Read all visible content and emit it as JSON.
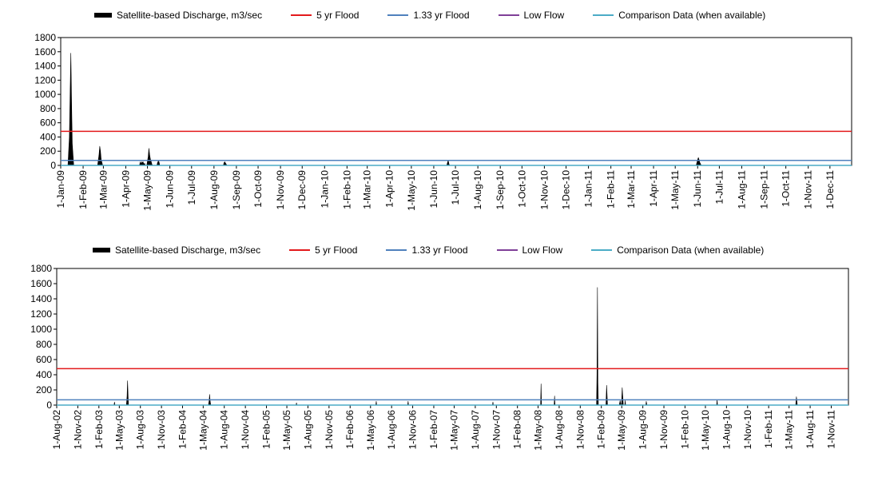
{
  "chart_data": [
    {
      "type": "area",
      "title": "",
      "xlabel": "",
      "ylabel": "",
      "ylim": [
        0,
        1800
      ],
      "yticks": [
        0,
        200,
        400,
        600,
        800,
        1000,
        1200,
        1400,
        1600,
        1800
      ],
      "xrange": [
        "2009-01-01",
        "2011-12-31"
      ],
      "xtick_labels": [
        "1-Jan-09",
        "1-Feb-09",
        "1-Mar-09",
        "1-Apr-09",
        "1-May-09",
        "1-Jun-09",
        "1-Jul-09",
        "1-Aug-09",
        "1-Sep-09",
        "1-Oct-09",
        "1-Nov-09",
        "1-Dec-09",
        "1-Jan-10",
        "1-Feb-10",
        "1-Mar-10",
        "1-Apr-10",
        "1-May-10",
        "1-Jun-10",
        "1-Jul-10",
        "1-Aug-10",
        "1-Sep-10",
        "1-Oct-10",
        "1-Nov-10",
        "1-Dec-10",
        "1-Jan-11",
        "1-Feb-11",
        "1-Mar-11",
        "1-Apr-11",
        "1-May-11",
        "1-Jun-11",
        "1-Jul-11",
        "1-Aug-11",
        "1-Sep-11",
        "1-Oct-11",
        "1-Nov-11",
        "1-Dec-11"
      ],
      "legend": {
        "position": "top",
        "items": [
          {
            "label": "Satellite-based Discharge, m3/sec",
            "kind": "area",
            "color": "#000000"
          },
          {
            "label": "5 yr Flood",
            "kind": "line",
            "color": "#e31a1c"
          },
          {
            "label": "1.33 yr Flood",
            "kind": "line",
            "color": "#4f81bd"
          },
          {
            "label": "Low Flow",
            "kind": "line",
            "color": "#7f3f98"
          },
          {
            "label": "Comparison Data (when available)",
            "kind": "line",
            "color": "#4bacc6"
          }
        ]
      },
      "reference_lines": [
        {
          "name": "5 yr Flood",
          "y": 480,
          "color": "#e31a1c"
        },
        {
          "name": "1.33 yr Flood",
          "y": 70,
          "color": "#4f81bd"
        },
        {
          "name": "Comparison Data (when available)",
          "y": 0,
          "color": "#4bacc6"
        }
      ],
      "series": [
        {
          "name": "Satellite-based Discharge, m3/sec",
          "color": "#000000",
          "points": [
            [
              "2009-01-11",
              0
            ],
            [
              "2009-01-13",
              400
            ],
            [
              "2009-01-14",
              1000
            ],
            [
              "2009-01-15",
              1580
            ],
            [
              "2009-01-16",
              900
            ],
            [
              "2009-01-17",
              300
            ],
            [
              "2009-01-19",
              0
            ],
            [
              "2009-02-21",
              0
            ],
            [
              "2009-02-23",
              150
            ],
            [
              "2009-02-24",
              270
            ],
            [
              "2009-02-25",
              200
            ],
            [
              "2009-02-26",
              80
            ],
            [
              "2009-02-28",
              0
            ],
            [
              "2009-04-20",
              0
            ],
            [
              "2009-04-21",
              50
            ],
            [
              "2009-04-22",
              20
            ],
            [
              "2009-04-23",
              50
            ],
            [
              "2009-04-24",
              40
            ],
            [
              "2009-04-25",
              50
            ],
            [
              "2009-04-26",
              10
            ],
            [
              "2009-04-27",
              30
            ],
            [
              "2009-04-28",
              0
            ],
            [
              "2009-04-30",
              0
            ],
            [
              "2009-05-01",
              60
            ],
            [
              "2009-05-02",
              120
            ],
            [
              "2009-05-03",
              240
            ],
            [
              "2009-05-04",
              150
            ],
            [
              "2009-05-05",
              90
            ],
            [
              "2009-05-06",
              60
            ],
            [
              "2009-05-07",
              20
            ],
            [
              "2009-05-08",
              0
            ],
            [
              "2009-05-14",
              0
            ],
            [
              "2009-05-15",
              40
            ],
            [
              "2009-05-16",
              60
            ],
            [
              "2009-05-17",
              50
            ],
            [
              "2009-05-18",
              0
            ],
            [
              "2009-08-14",
              0
            ],
            [
              "2009-08-15",
              40
            ],
            [
              "2009-08-16",
              50
            ],
            [
              "2009-08-17",
              30
            ],
            [
              "2009-08-19",
              0
            ],
            [
              "2010-06-19",
              0
            ],
            [
              "2010-06-20",
              40
            ],
            [
              "2010-06-21",
              70
            ],
            [
              "2010-06-22",
              20
            ],
            [
              "2010-06-23",
              0
            ],
            [
              "2011-05-30",
              0
            ],
            [
              "2011-05-31",
              40
            ],
            [
              "2011-06-01",
              80
            ],
            [
              "2011-06-02",
              110
            ],
            [
              "2011-06-03",
              80
            ],
            [
              "2011-06-04",
              40
            ],
            [
              "2011-06-06",
              0
            ]
          ]
        }
      ]
    },
    {
      "type": "area",
      "title": "",
      "xlabel": "",
      "ylabel": "",
      "ylim": [
        0,
        1800
      ],
      "yticks": [
        0,
        200,
        400,
        600,
        800,
        1000,
        1200,
        1400,
        1600,
        1800
      ],
      "xrange": [
        "2002-08-01",
        "2012-01-15"
      ],
      "xtick_labels": [
        "1-Aug-02",
        "1-Nov-02",
        "1-Feb-03",
        "1-May-03",
        "1-Aug-03",
        "1-Nov-03",
        "1-Feb-04",
        "1-May-04",
        "1-Aug-04",
        "1-Nov-04",
        "1-Feb-05",
        "1-May-05",
        "1-Aug-05",
        "1-Nov-05",
        "1-Feb-06",
        "1-May-06",
        "1-Aug-06",
        "1-Nov-06",
        "1-Feb-07",
        "1-May-07",
        "1-Aug-07",
        "1-Nov-07",
        "1-Feb-08",
        "1-May-08",
        "1-Aug-08",
        "1-Nov-08",
        "1-Feb-09",
        "1-May-09",
        "1-Aug-09",
        "1-Nov-09",
        "1-Feb-10",
        "1-May-10",
        "1-Aug-10",
        "1-Nov-10",
        "1-Feb-11",
        "1-May-11",
        "1-Aug-11",
        "1-Nov-11"
      ],
      "legend": {
        "position": "top",
        "items": [
          {
            "label": "Satellite-based Discharge, m3/sec",
            "kind": "area",
            "color": "#000000"
          },
          {
            "label": "5 yr Flood",
            "kind": "line",
            "color": "#e31a1c"
          },
          {
            "label": "1.33 yr Flood",
            "kind": "line",
            "color": "#4f81bd"
          },
          {
            "label": "Low Flow",
            "kind": "line",
            "color": "#7f3f98"
          },
          {
            "label": "Comparison Data (when available)",
            "kind": "line",
            "color": "#4bacc6"
          }
        ]
      },
      "reference_lines": [
        {
          "name": "5 yr Flood",
          "y": 480,
          "color": "#e31a1c"
        },
        {
          "name": "1.33 yr Flood",
          "y": 70,
          "color": "#4f81bd"
        },
        {
          "name": "Comparison Data (when available)",
          "y": 0,
          "color": "#4bacc6"
        }
      ],
      "series": [
        {
          "name": "Satellite-based Discharge, m3/sec",
          "color": "#000000",
          "points": [
            [
              "2003-04-08",
              0
            ],
            [
              "2003-04-10",
              40
            ],
            [
              "2003-04-12",
              0
            ],
            [
              "2003-06-01",
              0
            ],
            [
              "2003-06-04",
              120
            ],
            [
              "2003-06-06",
              320
            ],
            [
              "2003-06-08",
              150
            ],
            [
              "2003-06-10",
              0
            ],
            [
              "2004-05-24",
              0
            ],
            [
              "2004-05-27",
              60
            ],
            [
              "2004-05-29",
              140
            ],
            [
              "2004-05-31",
              60
            ],
            [
              "2004-06-03",
              0
            ],
            [
              "2005-06-10",
              0
            ],
            [
              "2005-06-12",
              30
            ],
            [
              "2005-06-14",
              0
            ],
            [
              "2006-05-24",
              0
            ],
            [
              "2006-05-26",
              50
            ],
            [
              "2006-05-28",
              0
            ],
            [
              "2006-10-10",
              0
            ],
            [
              "2006-10-12",
              50
            ],
            [
              "2006-10-14",
              0
            ],
            [
              "2007-10-15",
              0
            ],
            [
              "2007-10-17",
              40
            ],
            [
              "2007-10-19",
              0
            ],
            [
              "2008-05-12",
              0
            ],
            [
              "2008-05-14",
              280
            ],
            [
              "2008-05-16",
              0
            ],
            [
              "2008-07-10",
              0
            ],
            [
              "2008-07-12",
              120
            ],
            [
              "2008-07-14",
              0
            ],
            [
              "2009-01-11",
              0
            ],
            [
              "2009-01-13",
              400
            ],
            [
              "2009-01-15",
              1550
            ],
            [
              "2009-01-17",
              300
            ],
            [
              "2009-01-19",
              0
            ],
            [
              "2009-02-21",
              0
            ],
            [
              "2009-02-24",
              260
            ],
            [
              "2009-02-28",
              0
            ],
            [
              "2009-04-20",
              0
            ],
            [
              "2009-04-24",
              60
            ],
            [
              "2009-04-28",
              0
            ],
            [
              "2009-04-30",
              0
            ],
            [
              "2009-05-03",
              230
            ],
            [
              "2009-05-08",
              0
            ],
            [
              "2009-05-14",
              0
            ],
            [
              "2009-05-16",
              60
            ],
            [
              "2009-05-18",
              0
            ],
            [
              "2009-08-14",
              0
            ],
            [
              "2009-08-16",
              50
            ],
            [
              "2009-08-19",
              0
            ],
            [
              "2010-06-19",
              0
            ],
            [
              "2010-06-21",
              70
            ],
            [
              "2010-06-23",
              0
            ],
            [
              "2011-05-30",
              0
            ],
            [
              "2011-06-02",
              110
            ],
            [
              "2011-06-06",
              0
            ]
          ]
        }
      ]
    }
  ]
}
